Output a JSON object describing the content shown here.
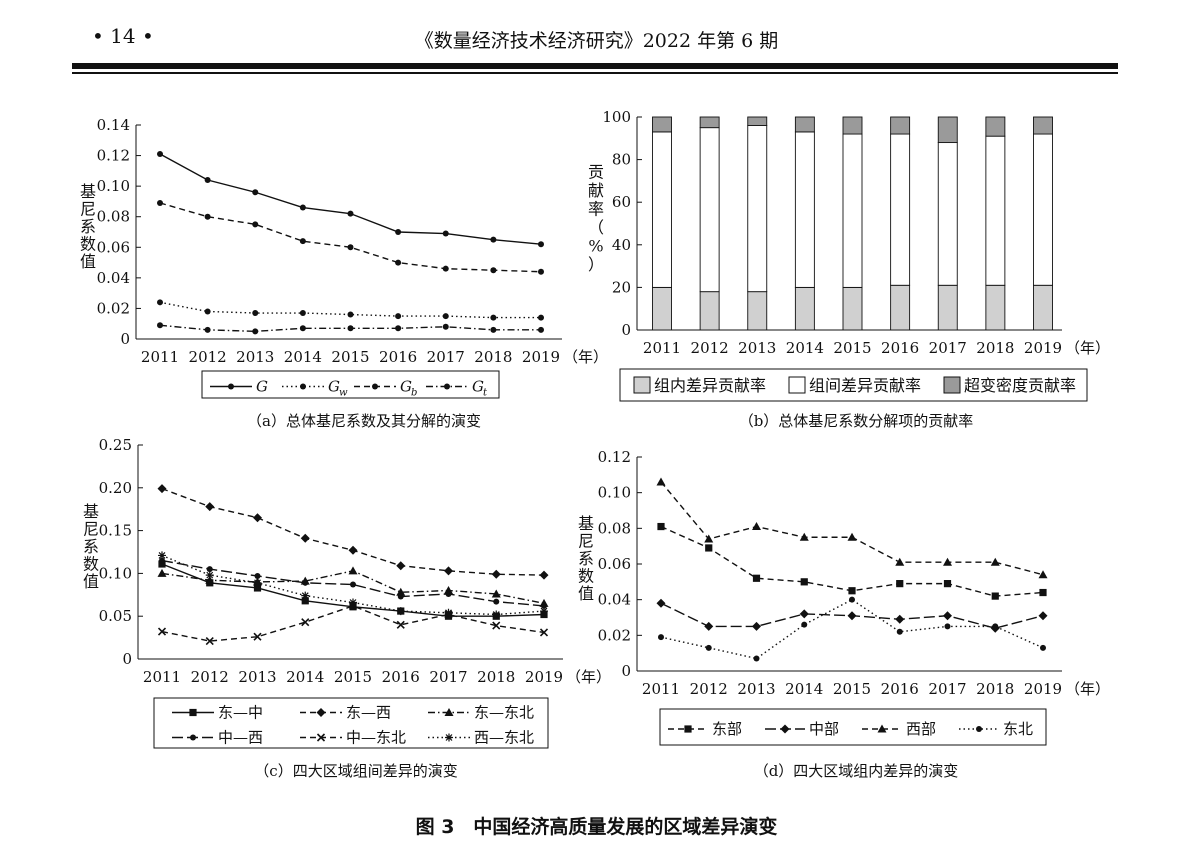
{
  "header": {
    "page_number": "• 14 •",
    "journal": "《数量经济技术经济研究》2022 年第 6 期"
  },
  "figure_title": "图 3　中国经济高质量发展的区域差异演变",
  "colors": {
    "ink": "#111111",
    "gray_light": "#d0d0d0",
    "gray_dark": "#9a9a9a",
    "white": "#ffffff"
  },
  "chart_data": [
    {
      "id": "a",
      "type": "line",
      "caption": "（a）总体基尼系数及其分解的演变",
      "ylabel": "基尼系数值",
      "xunit": "（年）",
      "ylim": [
        0,
        0.14
      ],
      "yticks": [
        "0",
        "0.02",
        "0.04",
        "0.06",
        "0.08",
        "0.10",
        "0.12",
        "0.14"
      ],
      "x": [
        "2011",
        "2012",
        "2013",
        "2014",
        "2015",
        "2016",
        "2017",
        "2018",
        "2019"
      ],
      "legend_position": "bottom",
      "series": [
        {
          "name": "G",
          "sub": "",
          "style": "solid",
          "marker": "circle",
          "values": [
            0.121,
            0.104,
            0.096,
            0.086,
            0.082,
            0.07,
            0.069,
            0.065,
            0.062
          ]
        },
        {
          "name": "G",
          "sub": "w",
          "style": "dotted",
          "marker": "circle",
          "values": [
            0.024,
            0.018,
            0.017,
            0.017,
            0.016,
            0.015,
            0.015,
            0.014,
            0.014
          ]
        },
        {
          "name": "G",
          "sub": "b",
          "style": "dashed",
          "marker": "circle",
          "values": [
            0.089,
            0.08,
            0.075,
            0.064,
            0.06,
            0.05,
            0.046,
            0.045,
            0.044
          ]
        },
        {
          "name": "G",
          "sub": "t",
          "style": "dashdot",
          "marker": "circle",
          "values": [
            0.009,
            0.006,
            0.005,
            0.007,
            0.007,
            0.007,
            0.008,
            0.006,
            0.006
          ]
        }
      ]
    },
    {
      "id": "b",
      "type": "bar",
      "stacked": true,
      "caption": "（b）总体基尼系数分解项的贡献率",
      "ylabel": "贡献率（%）",
      "xunit": "（年）",
      "ylim": [
        0,
        100
      ],
      "yticks": [
        "0",
        "20",
        "40",
        "60",
        "80",
        "100"
      ],
      "categories": [
        "2011",
        "2012",
        "2013",
        "2014",
        "2015",
        "2016",
        "2017",
        "2018",
        "2019"
      ],
      "legend_position": "bottom",
      "series": [
        {
          "name": "组内差异贡献率",
          "fill": "#d0d0d0",
          "values": [
            20,
            18,
            18,
            20,
            20,
            21,
            21,
            21,
            21
          ]
        },
        {
          "name": "组间差异贡献率",
          "fill": "#ffffff",
          "values": [
            73,
            77,
            78,
            73,
            72,
            71,
            67,
            70,
            71
          ]
        },
        {
          "name": "超变密度贡献率",
          "fill": "#9a9a9a",
          "values": [
            7,
            5,
            4,
            7,
            8,
            8,
            12,
            9,
            8
          ]
        }
      ]
    },
    {
      "id": "c",
      "type": "line",
      "caption": "（c）四大区域组间差异的演变",
      "ylabel": "基尼系数值",
      "xunit": "（年）",
      "ylim": [
        0,
        0.25
      ],
      "yticks": [
        "0",
        "0.05",
        "0.10",
        "0.15",
        "0.20",
        "0.25"
      ],
      "x": [
        "2011",
        "2012",
        "2013",
        "2014",
        "2015",
        "2016",
        "2017",
        "2018",
        "2019"
      ],
      "legend_position": "bottom",
      "series": [
        {
          "name": "东—中",
          "style": "solid",
          "marker": "square",
          "values": [
            0.111,
            0.089,
            0.083,
            0.068,
            0.061,
            0.056,
            0.05,
            0.05,
            0.052
          ]
        },
        {
          "name": "东—西",
          "style": "dashed",
          "marker": "diamond",
          "values": [
            0.199,
            0.178,
            0.165,
            0.141,
            0.127,
            0.109,
            0.103,
            0.099,
            0.098
          ]
        },
        {
          "name": "东—东北",
          "style": "dashdot",
          "marker": "triangle",
          "values": [
            0.1,
            0.092,
            0.09,
            0.091,
            0.103,
            0.078,
            0.08,
            0.076,
            0.065
          ]
        },
        {
          "name": "中—西",
          "style": "longdash",
          "marker": "circle",
          "values": [
            0.115,
            0.105,
            0.097,
            0.089,
            0.087,
            0.073,
            0.076,
            0.067,
            0.062
          ]
        },
        {
          "name": "中—东北",
          "style": "dashed",
          "marker": "cross",
          "values": [
            0.032,
            0.021,
            0.026,
            0.043,
            0.062,
            0.04,
            0.052,
            0.039,
            0.031
          ]
        },
        {
          "name": "西—东北",
          "style": "dotted",
          "marker": "star",
          "values": [
            0.121,
            0.098,
            0.089,
            0.074,
            0.066,
            0.056,
            0.054,
            0.052,
            0.056
          ]
        }
      ]
    },
    {
      "id": "d",
      "type": "line",
      "caption": "（d）四大区域组内差异的演变",
      "ylabel": "基尼系数值",
      "xunit": "（年）",
      "ylim": [
        0,
        0.12
      ],
      "yticks": [
        "0",
        "0.02",
        "0.04",
        "0.06",
        "0.08",
        "0.10",
        "0.12"
      ],
      "x": [
        "2011",
        "2012",
        "2013",
        "2014",
        "2015",
        "2016",
        "2017",
        "2018",
        "2019"
      ],
      "legend_position": "bottom",
      "series": [
        {
          "name": "东部",
          "style": "dashed",
          "marker": "square",
          "values": [
            0.081,
            0.069,
            0.052,
            0.05,
            0.045,
            0.049,
            0.049,
            0.042,
            0.044
          ]
        },
        {
          "name": "中部",
          "style": "longdash",
          "marker": "diamond",
          "values": [
            0.038,
            0.025,
            0.025,
            0.032,
            0.031,
            0.029,
            0.031,
            0.024,
            0.031
          ]
        },
        {
          "name": "西部",
          "style": "dashed",
          "marker": "triangle",
          "values": [
            0.106,
            0.074,
            0.081,
            0.075,
            0.075,
            0.061,
            0.061,
            0.061,
            0.054
          ]
        },
        {
          "name": "东北",
          "style": "dotted",
          "marker": "circle",
          "values": [
            0.019,
            0.013,
            0.007,
            0.026,
            0.04,
            0.022,
            0.025,
            0.025,
            0.013
          ]
        }
      ]
    }
  ]
}
